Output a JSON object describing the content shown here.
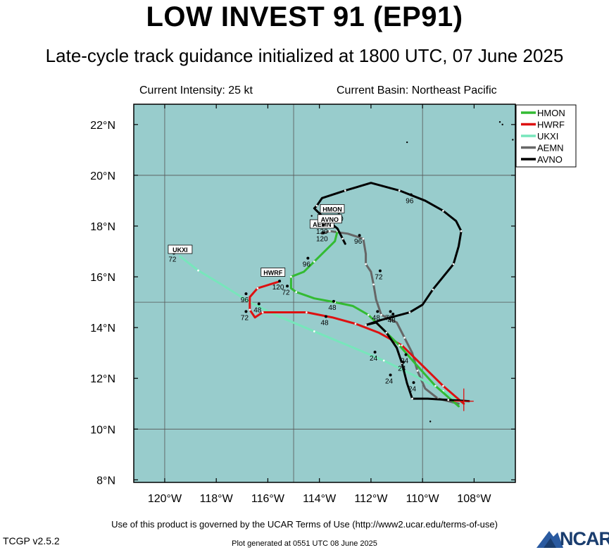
{
  "title": "LOW INVEST 91 (EP91)",
  "subtitle": "Late-cycle track guidance initialized at 1800 UTC, 07 June 2025",
  "current_intensity": "Current Intensity: 25 kt",
  "current_basin": "Current Basin: Northeast Pacific",
  "footer": {
    "terms": "Use of this product is governed by the UCAR Terms of Use (http://www2.ucar.edu/terms-of-use)",
    "version": "TCGP v2.5.2",
    "plot_generated": "Plot generated at 0551 UTC   08 June 2025",
    "logo": "NCAR"
  },
  "map": {
    "lon_range": [
      -121.2,
      -106.4
    ],
    "lat_range": [
      7.9,
      22.8
    ],
    "lon_ticks": [
      -120,
      -118,
      -116,
      -114,
      -112,
      -110,
      -108
    ],
    "lon_tick_labels": [
      "120°W",
      "118°W",
      "116°W",
      "114°W",
      "112°W",
      "110°W",
      "108°W"
    ],
    "lat_ticks": [
      8,
      10,
      12,
      14,
      16,
      18,
      20,
      22
    ],
    "lat_tick_labels": [
      "8°N",
      "10°N",
      "12°N",
      "14°N",
      "16°N",
      "18°N",
      "20°N",
      "22°N"
    ],
    "grid_lons": [
      -120,
      -115,
      -110
    ],
    "grid_lats": [
      10,
      15,
      20
    ],
    "ocean_color": "#98cccc",
    "current_position": [
      -108.4,
      11.1
    ],
    "legend": [
      {
        "name": "HMON",
        "color": "#33bb33"
      },
      {
        "name": "HWRF",
        "color": "#dd1111"
      },
      {
        "name": "UKXI",
        "color": "#77e6bb"
      },
      {
        "name": "AEMN",
        "color": "#666666"
      },
      {
        "name": "AVNO",
        "color": "#000000"
      }
    ],
    "tracks": [
      {
        "name": "HMON",
        "color": "#33bb33",
        "points": [
          [
            -108.6,
            10.9
          ],
          [
            -109.5,
            11.7
          ],
          [
            -110.3,
            12.6
          ],
          [
            -110.9,
            13.3
          ],
          [
            -111.6,
            14.0
          ],
          [
            -112.1,
            14.5
          ],
          [
            -112.7,
            14.85
          ],
          [
            -113.4,
            15.0
          ],
          [
            -114.2,
            15.15
          ],
          [
            -114.9,
            15.4
          ],
          [
            -115.1,
            15.55
          ],
          [
            -115.1,
            16.0
          ],
          [
            -114.6,
            16.2
          ],
          [
            -114.2,
            16.6
          ],
          [
            -113.4,
            17.4
          ],
          [
            -113.3,
            17.8
          ]
        ],
        "hour_labels": [
          {
            "text": "24",
            "lonlat": [
              -110.8,
              12.3
            ]
          },
          {
            "text": "48",
            "lonlat": [
              -113.5,
              14.7
            ]
          },
          {
            "text": "72",
            "lonlat": [
              -115.3,
              15.3
            ]
          },
          {
            "text": "96",
            "lonlat": [
              -114.5,
              16.4
            ]
          },
          {
            "text": "120",
            "lonlat": [
              -113.3,
              18.2
            ]
          }
        ],
        "end_label": {
          "text": "HMON",
          "lonlat": [
            -113.5,
            18.6
          ]
        }
      },
      {
        "name": "HWRF",
        "color": "#dd1111",
        "points": [
          [
            -108.4,
            11.0
          ],
          [
            -109.2,
            11.7
          ],
          [
            -110.0,
            12.5
          ],
          [
            -110.8,
            13.3
          ],
          [
            -111.7,
            13.8
          ],
          [
            -112.6,
            14.15
          ],
          [
            -113.5,
            14.4
          ],
          [
            -114.5,
            14.6
          ],
          [
            -115.3,
            14.6
          ],
          [
            -116.2,
            14.6
          ],
          [
            -116.5,
            14.4
          ],
          [
            -116.7,
            14.7
          ],
          [
            -116.7,
            15.2
          ],
          [
            -116.4,
            15.55
          ],
          [
            -115.6,
            15.8
          ]
        ],
        "hour_labels": [
          {
            "text": "24",
            "lonlat": [
              -110.7,
              12.6
            ]
          },
          {
            "text": "48",
            "lonlat": [
              -113.8,
              14.1
            ]
          },
          {
            "text": "72",
            "lonlat": [
              -116.9,
              14.3
            ]
          },
          {
            "text": "96",
            "lonlat": [
              -116.9,
              15.0
            ]
          },
          {
            "text": "120",
            "lonlat": [
              -115.6,
              15.5
            ]
          }
        ],
        "end_label": {
          "text": "HWRF",
          "lonlat": [
            -115.8,
            16.1
          ]
        }
      },
      {
        "name": "UKXI",
        "color": "#77e6bb",
        "points": [
          [
            -108.4,
            11.0
          ],
          [
            -109.2,
            11.5
          ],
          [
            -110.3,
            12.1
          ],
          [
            -111.5,
            12.7
          ],
          [
            -112.9,
            13.3
          ],
          [
            -114.2,
            13.85
          ],
          [
            -115.6,
            14.45
          ],
          [
            -116.7,
            15.0
          ],
          [
            -117.8,
            15.7
          ],
          [
            -118.7,
            16.25
          ],
          [
            -119.4,
            16.8
          ]
        ],
        "hour_labels": [
          {
            "text": "24",
            "lonlat": [
              -111.9,
              12.7
            ]
          },
          {
            "text": "48",
            "lonlat": [
              -116.4,
              14.6
            ]
          },
          {
            "text": "72",
            "lonlat": [
              -119.7,
              16.6
            ]
          }
        ],
        "end_label": {
          "text": "UKXI",
          "lonlat": [
            -119.4,
            17.0
          ]
        }
      },
      {
        "name": "AEMN",
        "color": "#666666",
        "points": [
          [
            -108.6,
            11.0
          ],
          [
            -109.4,
            11.2
          ],
          [
            -109.9,
            11.6
          ],
          [
            -110.2,
            12.3
          ],
          [
            -110.4,
            13.0
          ],
          [
            -110.7,
            13.6
          ],
          [
            -111.0,
            14.2
          ],
          [
            -111.6,
            14.5
          ],
          [
            -111.8,
            15.1
          ],
          [
            -111.9,
            15.7
          ],
          [
            -112.0,
            16.2
          ],
          [
            -112.2,
            16.5
          ],
          [
            -112.2,
            16.9
          ],
          [
            -112.3,
            17.5
          ],
          [
            -112.9,
            17.7
          ],
          [
            -113.6,
            17.8
          ],
          [
            -113.9,
            17.7
          ]
        ],
        "hour_labels": [
          {
            "text": "24",
            "lonlat": [
              -110.4,
              11.5
            ]
          },
          {
            "text": "48",
            "lonlat": [
              -111.2,
              14.2
            ]
          },
          {
            "text": "72",
            "lonlat": [
              -111.7,
              15.9
            ]
          },
          {
            "text": "96",
            "lonlat": [
              -112.5,
              17.3
            ]
          },
          {
            "text": "120",
            "lonlat": [
              -113.9,
              17.4
            ]
          }
        ],
        "end_label": {
          "text": "AEMN",
          "lonlat": [
            -113.9,
            18.0
          ]
        }
      },
      {
        "name": "AVNO",
        "color": "#000000",
        "points": [
          [
            -108.2,
            11.1
          ],
          [
            -109.0,
            11.15
          ],
          [
            -109.8,
            11.2
          ],
          [
            -110.4,
            11.2
          ],
          [
            -110.6,
            11.8
          ],
          [
            -110.8,
            12.6
          ],
          [
            -111.0,
            13.2
          ],
          [
            -111.4,
            13.8
          ],
          [
            -111.8,
            14.2
          ],
          [
            -112.2,
            14.1
          ],
          [
            -111.6,
            14.3
          ],
          [
            -110.5,
            14.6
          ],
          [
            -110.0,
            14.9
          ],
          [
            -109.6,
            15.5
          ],
          [
            -109.2,
            16.0
          ],
          [
            -108.8,
            16.5
          ],
          [
            -108.6,
            17.2
          ],
          [
            -108.5,
            17.8
          ],
          [
            -108.7,
            18.2
          ],
          [
            -109.2,
            18.6
          ],
          [
            -109.9,
            19.0
          ],
          [
            -110.9,
            19.4
          ],
          [
            -112.0,
            19.7
          ],
          [
            -113.0,
            19.4
          ],
          [
            -113.9,
            19.1
          ],
          [
            -114.1,
            18.8
          ],
          [
            -114.2,
            18.7
          ],
          [
            -113.8,
            18.3
          ],
          [
            -113.3,
            17.9
          ],
          [
            -113.1,
            17.5
          ],
          [
            -113.0,
            17.3
          ]
        ],
        "hour_labels": [
          {
            "text": "24",
            "lonlat": [
              -111.3,
              11.8
            ]
          },
          {
            "text": "48",
            "lonlat": [
              -111.8,
              14.3
            ]
          },
          {
            "text": "72",
            "lonlat": [
              -111.3,
              14.3
            ]
          },
          {
            "text": "96",
            "lonlat": [
              -110.5,
              18.9
            ]
          },
          {
            "text": "120",
            "lonlat": [
              -113.9,
              17.7
            ]
          }
        ],
        "end_label": {
          "text": "AVNO",
          "lonlat": [
            -113.6,
            18.2
          ]
        }
      }
    ]
  }
}
